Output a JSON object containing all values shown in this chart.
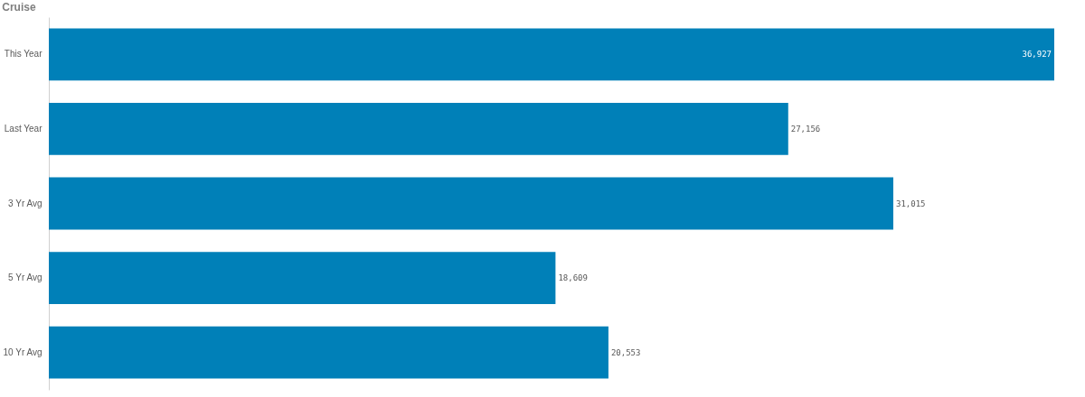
{
  "chart_data": {
    "type": "bar",
    "title": "Cruise",
    "orientation": "horizontal",
    "categories": [
      "This Year",
      "Last Year",
      "3 Yr Avg",
      "5 Yr Avg",
      "10 Yr Avg"
    ],
    "values": [
      36927,
      27156,
      31015,
      18609,
      20553
    ],
    "value_labels": [
      "36,927",
      "27,156",
      "31,015",
      "18,609",
      "20,553"
    ],
    "color": "#0080b8",
    "tick_labels": "y"
  }
}
